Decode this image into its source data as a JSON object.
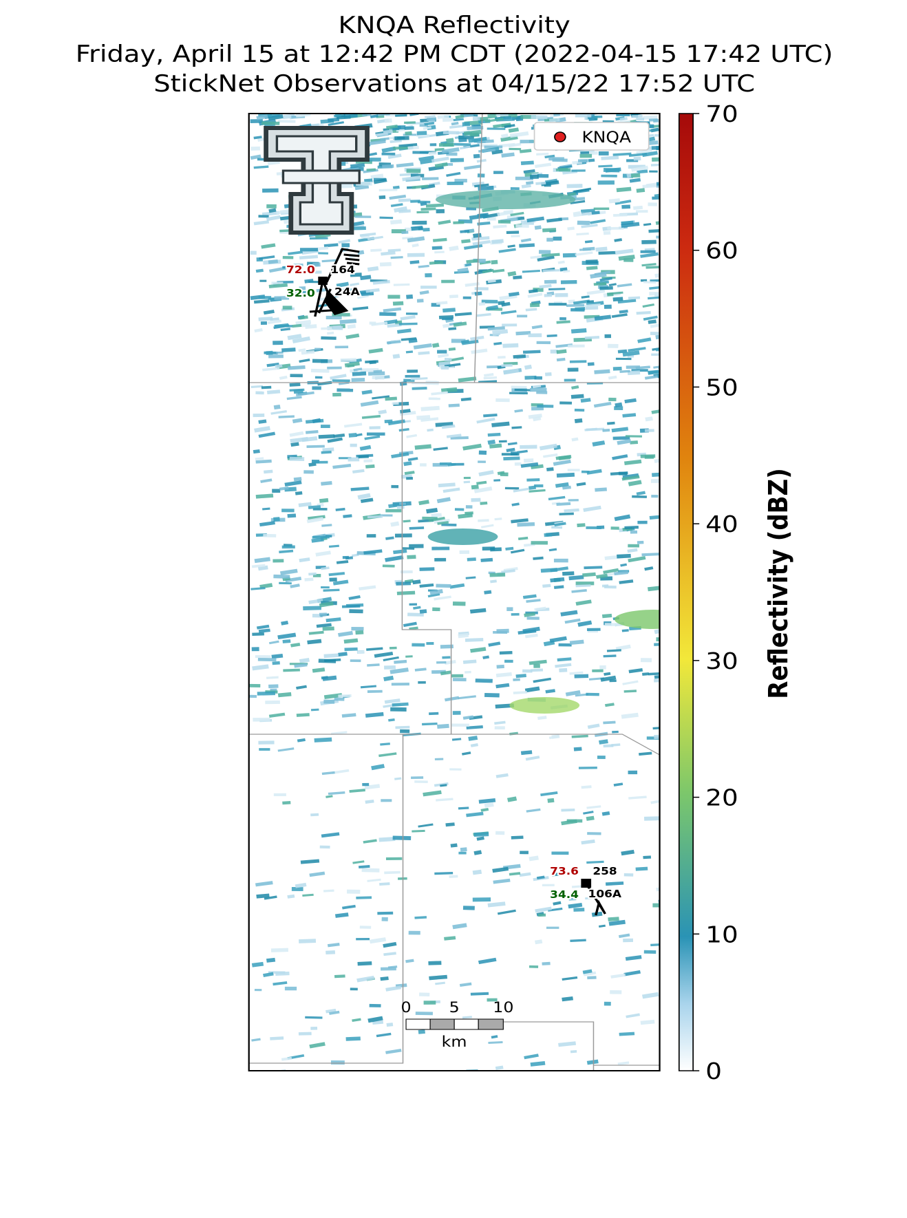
{
  "title": [
    "KNQA Reflectivity",
    "Friday, April 15 at 12:42 PM CDT (2022-04-15 17:42 UTC)",
    "StickNet Observations at 04/15/22 17:52 UTC"
  ],
  "legend": {
    "label": "KNQA"
  },
  "colorbar": {
    "label": "Reflectivity (dBZ)",
    "lim": [
      0,
      70
    ],
    "ticks": [
      0,
      10,
      20,
      30,
      40,
      50,
      60,
      70
    ]
  },
  "stations": [
    {
      "temperature": "72.0",
      "dewpoint": "32.0",
      "value": "164",
      "id": "24A"
    },
    {
      "temperature": "73.6",
      "dewpoint": "34.4",
      "value": "258",
      "id": "106A"
    }
  ],
  "scale_bar": {
    "ticks": [
      0,
      5,
      10
    ],
    "unit": "km"
  }
}
